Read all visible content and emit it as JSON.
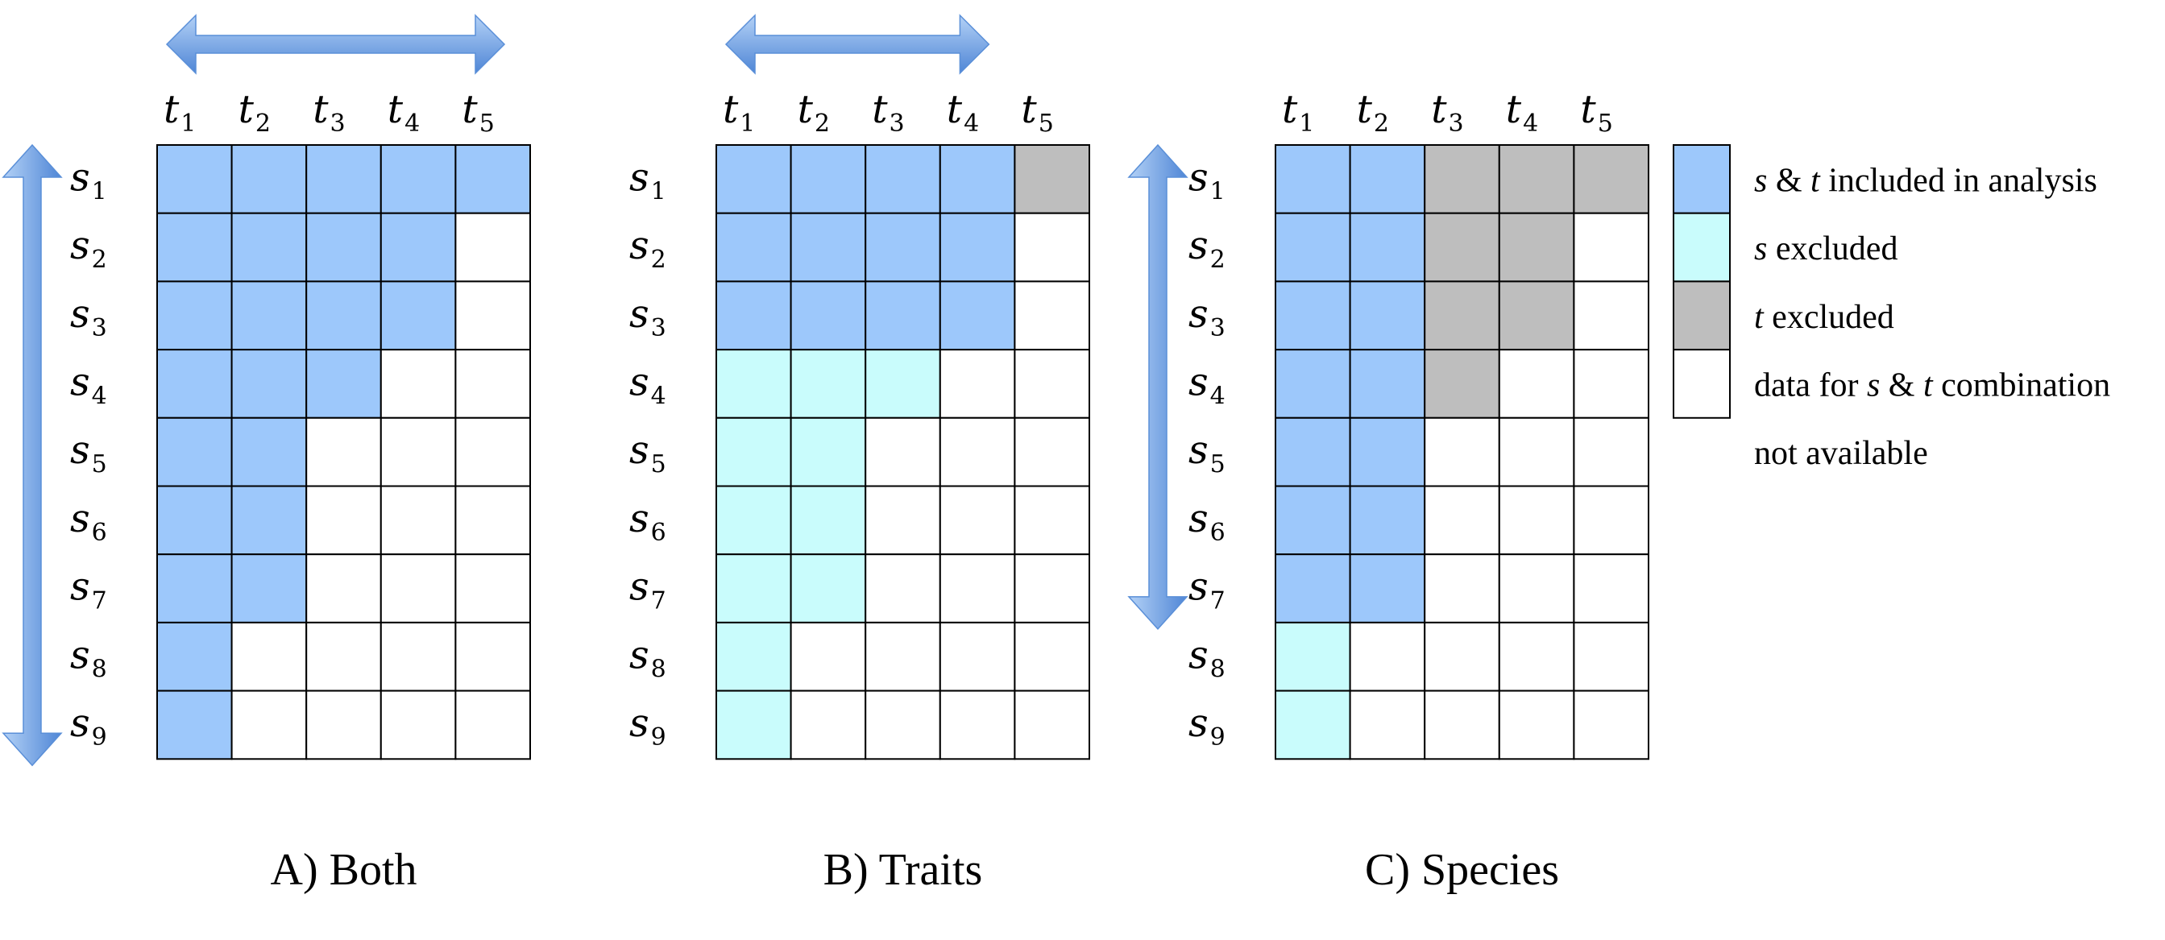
{
  "colors": {
    "included": "#9dc8fb",
    "s_excluded": "#c9fcfc",
    "t_excluded": "#bebebe",
    "unavailable": "#ffffff",
    "arrow_light": "#a8c9f4",
    "arrow_dark": "#4f86d6"
  },
  "row_labels": [
    {
      "base": "s",
      "sub": "1"
    },
    {
      "base": "s",
      "sub": "2"
    },
    {
      "base": "s",
      "sub": "3"
    },
    {
      "base": "s",
      "sub": "4"
    },
    {
      "base": "s",
      "sub": "5"
    },
    {
      "base": "s",
      "sub": "6"
    },
    {
      "base": "s",
      "sub": "7"
    },
    {
      "base": "s",
      "sub": "8"
    },
    {
      "base": "s",
      "sub": "9"
    }
  ],
  "col_labels": [
    {
      "base": "t",
      "sub": "1"
    },
    {
      "base": "t",
      "sub": "2"
    },
    {
      "base": "t",
      "sub": "3"
    },
    {
      "base": "t",
      "sub": "4"
    },
    {
      "base": "t",
      "sub": "5"
    }
  ],
  "panels": [
    {
      "title": "A) Both",
      "arrows": {
        "horizontal": "t1-t5",
        "vertical": "s1-s9"
      },
      "cells": [
        [
          "I",
          "I",
          "I",
          "I",
          "I"
        ],
        [
          "I",
          "I",
          "I",
          "I",
          "U"
        ],
        [
          "I",
          "I",
          "I",
          "I",
          "U"
        ],
        [
          "I",
          "I",
          "I",
          "U",
          "U"
        ],
        [
          "I",
          "I",
          "U",
          "U",
          "U"
        ],
        [
          "I",
          "I",
          "U",
          "U",
          "U"
        ],
        [
          "I",
          "I",
          "U",
          "U",
          "U"
        ],
        [
          "I",
          "U",
          "U",
          "U",
          "U"
        ],
        [
          "I",
          "U",
          "U",
          "U",
          "U"
        ]
      ]
    },
    {
      "title": "B) Traits",
      "arrows": {
        "horizontal": "t1-t4",
        "vertical": ""
      },
      "cells": [
        [
          "I",
          "I",
          "I",
          "I",
          "T"
        ],
        [
          "I",
          "I",
          "I",
          "I",
          "U"
        ],
        [
          "I",
          "I",
          "I",
          "I",
          "U"
        ],
        [
          "S",
          "S",
          "S",
          "U",
          "U"
        ],
        [
          "S",
          "S",
          "U",
          "U",
          "U"
        ],
        [
          "S",
          "S",
          "U",
          "U",
          "U"
        ],
        [
          "S",
          "S",
          "U",
          "U",
          "U"
        ],
        [
          "S",
          "U",
          "U",
          "U",
          "U"
        ],
        [
          "S",
          "U",
          "U",
          "U",
          "U"
        ]
      ]
    },
    {
      "title": "C) Species",
      "arrows": {
        "horizontal": "",
        "vertical": "s1-s7"
      },
      "cells": [
        [
          "I",
          "I",
          "T",
          "T",
          "T"
        ],
        [
          "I",
          "I",
          "T",
          "T",
          "U"
        ],
        [
          "I",
          "I",
          "T",
          "T",
          "U"
        ],
        [
          "I",
          "I",
          "T",
          "U",
          "U"
        ],
        [
          "I",
          "I",
          "U",
          "U",
          "U"
        ],
        [
          "I",
          "I",
          "U",
          "U",
          "U"
        ],
        [
          "I",
          "I",
          "U",
          "U",
          "U"
        ],
        [
          "S",
          "U",
          "U",
          "U",
          "U"
        ],
        [
          "S",
          "U",
          "U",
          "U",
          "U"
        ]
      ]
    }
  ],
  "legend": [
    {
      "code": "I",
      "parts": [
        {
          "t": "s",
          "i": true
        },
        {
          "t": " & ",
          "i": false
        },
        {
          "t": "t",
          "i": true
        },
        {
          "t": " included in analysis",
          "i": false
        }
      ]
    },
    {
      "code": "S",
      "parts": [
        {
          "t": "s",
          "i": true
        },
        {
          "t": " excluded",
          "i": false
        }
      ]
    },
    {
      "code": "T",
      "parts": [
        {
          "t": "t",
          "i": true
        },
        {
          "t": " excluded",
          "i": false
        }
      ]
    },
    {
      "code": "U",
      "parts": [
        {
          "t": "data for ",
          "i": false
        },
        {
          "t": "s",
          "i": true
        },
        {
          "t": " & ",
          "i": false
        },
        {
          "t": "t",
          "i": true
        },
        {
          "t": " combination",
          "i": false
        }
      ]
    }
  ],
  "legend_continuation": "not available"
}
